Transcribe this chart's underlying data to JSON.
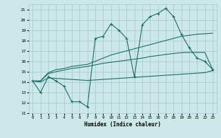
{
  "title": "",
  "xlabel": "Humidex (Indice chaleur)",
  "xlim": [
    -0.5,
    23.5
  ],
  "ylim": [
    11,
    21.5
  ],
  "yticks": [
    11,
    12,
    13,
    14,
    15,
    16,
    17,
    18,
    19,
    20,
    21
  ],
  "xticks": [
    0,
    1,
    2,
    3,
    4,
    5,
    6,
    7,
    8,
    9,
    10,
    11,
    12,
    13,
    14,
    15,
    16,
    17,
    18,
    19,
    20,
    21,
    22,
    23
  ],
  "bg_color": "#cce8e8",
  "grid_color": "#aacccc",
  "line_color": "#1a6b6b",
  "lines": [
    [
      14.1,
      13.0,
      14.5,
      14.1,
      13.6,
      12.1,
      12.1,
      11.6,
      18.2,
      18.4,
      19.6,
      19.0,
      18.2,
      14.5,
      19.5,
      20.3,
      20.6,
      21.1,
      20.3,
      18.6,
      17.3,
      16.3,
      16.0,
      15.2
    ],
    [
      14.1,
      14.1,
      14.9,
      15.2,
      15.3,
      15.5,
      15.6,
      15.7,
      16.0,
      16.3,
      16.6,
      16.8,
      17.0,
      17.2,
      17.4,
      17.6,
      17.8,
      18.0,
      18.2,
      18.4,
      18.5,
      18.6,
      18.65,
      18.7
    ],
    [
      14.1,
      14.1,
      14.8,
      15.0,
      15.15,
      15.3,
      15.4,
      15.5,
      15.65,
      15.8,
      15.9,
      16.0,
      16.1,
      16.2,
      16.3,
      16.45,
      16.55,
      16.65,
      16.75,
      16.82,
      16.85,
      16.85,
      16.85,
      15.2
    ],
    [
      14.1,
      14.0,
      14.4,
      14.35,
      14.3,
      14.25,
      14.2,
      14.15,
      14.2,
      14.25,
      14.3,
      14.35,
      14.4,
      14.45,
      14.5,
      14.55,
      14.6,
      14.65,
      14.7,
      14.75,
      14.8,
      14.85,
      14.9,
      15.1
    ]
  ]
}
